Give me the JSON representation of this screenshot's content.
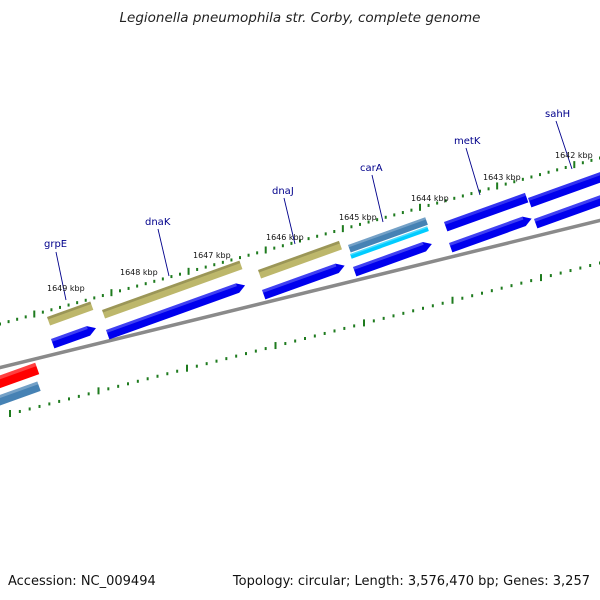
{
  "title": "Legionella pneumophila str. Corby, complete genome",
  "footer": {
    "accession": "Accession: NC_009494",
    "stats": "Topology: circular; Length: 3,576,470 bp; Genes: 3,257"
  },
  "colors": {
    "gene_blue": "#0000ee",
    "khaki": "#bdb76b",
    "steel_blue": "#4682b4",
    "cyan": "#00ccff",
    "red": "#ff0000",
    "tick_green": "#1e7b1e",
    "backbone_gray": "#8a8a8a",
    "label_navy": "#00008b"
  },
  "gene_labels": [
    "grpE",
    "dnaK",
    "dnaJ",
    "carA",
    "metK",
    "sahH"
  ],
  "tick_labels": [
    "1649 kbp",
    "1648 kbp",
    "1647 kbp",
    "1646 kbp",
    "1645 kbp",
    "1644 kbp",
    "1643 kbp",
    "1642 kbp"
  ]
}
